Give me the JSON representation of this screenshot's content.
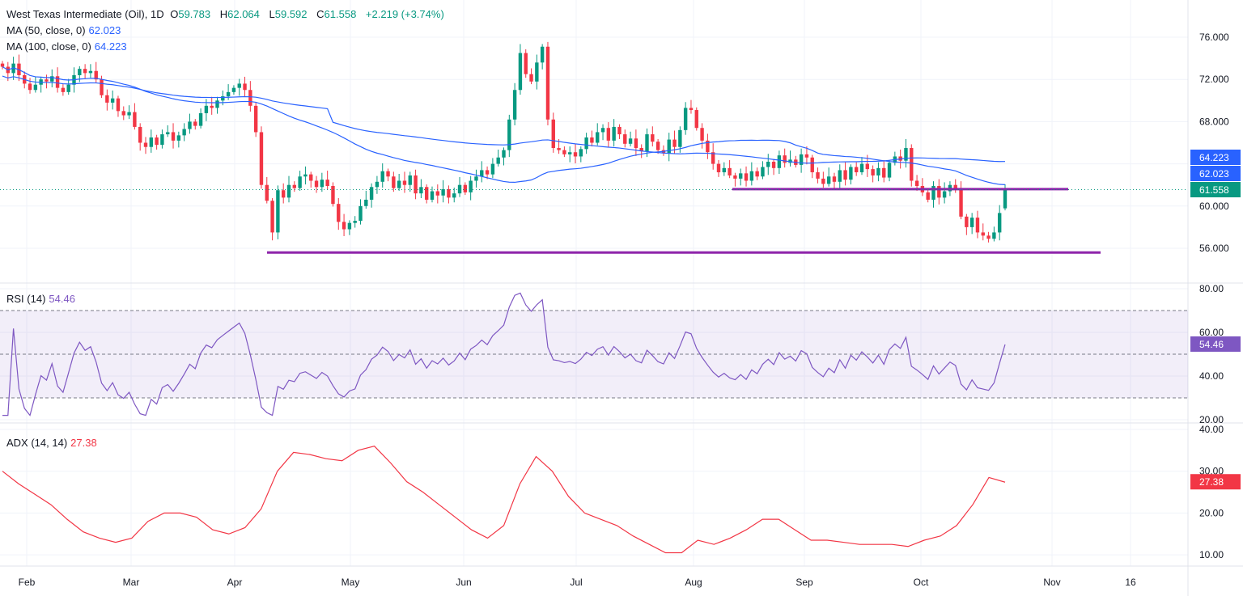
{
  "header": {
    "symbol": "West Texas Intermediate (Oil), 1D",
    "open_label": "O",
    "open": "59.783",
    "high_label": "H",
    "high": "62.064",
    "low_label": "L",
    "low": "59.592",
    "close_label": "C",
    "close": "61.558",
    "change": "+2.219 (+3.74%)",
    "ma50_label": "MA (50, close, 0)",
    "ma50_value": "62.023",
    "ma100_label": "MA (100, close, 0)",
    "ma100_value": "64.223",
    "rsi_label": "RSI (14)",
    "rsi_value": "54.46",
    "adx_label": "ADX (14, 14)",
    "adx_value": "27.38"
  },
  "colors": {
    "up": "#089981",
    "down": "#f23645",
    "ma": "#2962ff",
    "rsi": "#7e57c2",
    "adx": "#f23645",
    "annotation": "#8e24aa"
  },
  "chart_data": {
    "type": "candlestick",
    "timeframe": "1D",
    "x_tick_labels": [
      "Feb",
      "Mar",
      "Apr",
      "May",
      "Jun",
      "Jul",
      "Aug",
      "Sep",
      "Oct",
      "Nov",
      "16"
    ],
    "price_axis": {
      "ticks": [
        "76.000",
        "72.000",
        "68.000",
        "60.000",
        "56.000"
      ],
      "range": [
        54,
        77
      ]
    },
    "price_tags": [
      {
        "value": "64.223",
        "color": "#2962ff"
      },
      {
        "value": "62.023",
        "color": "#2962ff"
      },
      {
        "value": "61.558",
        "color": "#089981"
      }
    ],
    "last_candle": {
      "open": 59.783,
      "high": 62.064,
      "low": 59.592,
      "close": 61.558
    },
    "closes": [
      73.2,
      72.6,
      73.5,
      72.4,
      71.6,
      71.0,
      71.5,
      72.0,
      71.8,
      72.3,
      71.2,
      70.8,
      71.5,
      72.4,
      73.0,
      72.6,
      72.8,
      72.0,
      70.5,
      69.8,
      70.2,
      69.0,
      68.6,
      68.9,
      67.5,
      66.0,
      65.6,
      66.5,
      65.8,
      66.8,
      67.0,
      66.2,
      66.7,
      67.3,
      68.0,
      67.6,
      68.8,
      69.5,
      69.3,
      70.0,
      70.4,
      70.8,
      71.2,
      71.6,
      71.0,
      69.5,
      67.0,
      62.0,
      60.5,
      57.5,
      61.5,
      60.8,
      62.0,
      61.7,
      62.8,
      63.0,
      62.4,
      61.8,
      62.5,
      61.9,
      60.2,
      58.5,
      57.8,
      58.4,
      58.6,
      60.0,
      60.6,
      61.8,
      62.3,
      63.3,
      62.8,
      61.7,
      62.4,
      62.0,
      62.9,
      61.2,
      61.8,
      60.6,
      61.4,
      61.0,
      61.6,
      60.8,
      61.2,
      62.0,
      61.3,
      62.4,
      62.8,
      63.4,
      63.0,
      64.0,
      64.6,
      65.3,
      68.2,
      71.0,
      74.5,
      72.5,
      71.8,
      73.6,
      75.1,
      68.2,
      65.5,
      65.3,
      64.9,
      65.1,
      64.7,
      65.4,
      66.5,
      66.0,
      67.0,
      67.4,
      66.2,
      67.5,
      66.8,
      65.9,
      66.4,
      65.5,
      65.2,
      66.8,
      66.1,
      65.3,
      65.0,
      66.3,
      65.6,
      67.2,
      69.3,
      69.1,
      67.4,
      66.2,
      65.1,
      64.0,
      63.2,
      63.6,
      62.9,
      62.6,
      63.1,
      62.4,
      63.3,
      62.8,
      63.7,
      64.2,
      63.6,
      64.8,
      64.1,
      64.4,
      63.9,
      64.9,
      64.6,
      63.2,
      62.6,
      62.1,
      62.8,
      62.3,
      63.4,
      62.5,
      63.7,
      63.2,
      64.0,
      63.5,
      62.9,
      63.6,
      62.7,
      64.1,
      64.7,
      64.3,
      65.5,
      62.4,
      61.9,
      61.3,
      60.6,
      61.9,
      60.8,
      61.4,
      62.0,
      61.6,
      59.0,
      58.0,
      58.9,
      57.5,
      57.2,
      56.9,
      57.5,
      59.34,
      61.558
    ],
    "moving_averages": [
      {
        "name": "MA (50, close, 0)",
        "period": 50,
        "last": 62.023
      },
      {
        "name": "MA (100, close, 0)",
        "period": 100,
        "last": 64.223
      }
    ],
    "annotations": [
      {
        "type": "horizontal-level",
        "price": 61.6
      },
      {
        "type": "horizontal-level",
        "price": 55.6
      }
    ],
    "rsi": {
      "period": 14,
      "last": 54.46,
      "ticks": [
        "80.00",
        "60.00",
        "40.00",
        "20.00"
      ],
      "range": [
        20,
        80
      ],
      "band": [
        30,
        70
      ],
      "midline": 50
    },
    "adx": {
      "period": 14,
      "last": 27.38,
      "ticks": [
        "40.00",
        "30.00",
        "20.00",
        "10.00"
      ],
      "range": [
        10,
        40
      ],
      "values": [
        30,
        27,
        24.5,
        22,
        18.5,
        15.5,
        14,
        13,
        14,
        18,
        20,
        20,
        19,
        16,
        15,
        16.5,
        21,
        30,
        34.5,
        34,
        33,
        32.5,
        35,
        36,
        32,
        27.5,
        25,
        22,
        19,
        16,
        14,
        17,
        27,
        33.5,
        30,
        24,
        20,
        18.5,
        17,
        14.5,
        12.5,
        10.5,
        10.5,
        13.5,
        12.5,
        14,
        16,
        18.5,
        18.5,
        16,
        13.5,
        13.5,
        13,
        12.5,
        12.5,
        12.5,
        12,
        13.5,
        14.5,
        17,
        22,
        28.5,
        27.38
      ]
    }
  }
}
